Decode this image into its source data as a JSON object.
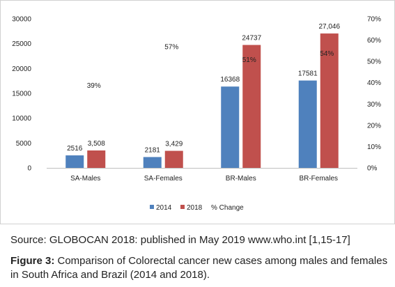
{
  "chart_data": {
    "type": "bar",
    "categories": [
      "SA-Males",
      "SA-Females",
      "BR-Males",
      "BR-Females"
    ],
    "series": [
      {
        "name": "2014",
        "values": [
          2516,
          2181,
          16368,
          17581
        ],
        "labels": [
          "2516",
          "2181",
          "16368",
          "17581"
        ],
        "color": "#4f81bd"
      },
      {
        "name": "2018",
        "values": [
          3508,
          3429,
          24737,
          27046
        ],
        "labels": [
          "3,508",
          "3,429",
          "24737",
          "27,046"
        ],
        "color": "#c0504d"
      },
      {
        "name": "% Change",
        "values": [
          39,
          57,
          51,
          54
        ],
        "labels": [
          "39%",
          "57%",
          "51%",
          "54%"
        ],
        "color": "#9bbb59"
      }
    ],
    "y_left": {
      "ticks": [
        "0",
        "5000",
        "10000",
        "15000",
        "20000",
        "25000",
        "30000"
      ],
      "ylim": [
        0,
        30000
      ]
    },
    "y_right": {
      "ticks": [
        "0%",
        "10%",
        "20%",
        "30%",
        "40%",
        "50%",
        "60%",
        "70%"
      ],
      "ylim": [
        0,
        70
      ]
    },
    "legend_position": "bottom",
    "grid": false
  },
  "source_text": "Source: GLOBOCAN 2018: published in May 2019 www.who.int [1,15-17]",
  "caption": {
    "label": "Figure 3:",
    "text": " Comparison of Colorectal cancer new cases among males and females in South Africa and Brazil (2014 and 2018)."
  }
}
